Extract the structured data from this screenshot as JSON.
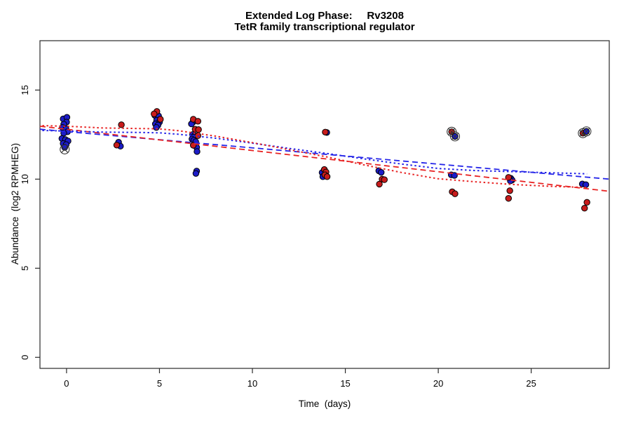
{
  "chart_data": {
    "type": "scatter",
    "title": "Extended Log Phase:     Rv3208",
    "subtitle": "TetR family transcriptional regulator",
    "xlabel": "Time  (days)",
    "ylabel": "Abundance  (log2 RPMHEG)",
    "xlim": [
      -1.43,
      29.2
    ],
    "ylim": [
      -0.62,
      17.77
    ],
    "xticks": [
      0,
      5,
      10,
      15,
      20,
      25
    ],
    "yticks": [
      0,
      5,
      10,
      15
    ],
    "grid": false,
    "legend": "none",
    "colors": {
      "blue_point": "#1c1cc8",
      "red_point": "#c81c1c",
      "blue_line": "#2424e8",
      "red_line": "#e82424",
      "point_stroke": "#000000",
      "axis": "#2a2a2a",
      "flag_stroke": "#333333"
    },
    "series": [
      {
        "name": "blue-replicate-points",
        "type": "points",
        "color_key": "blue_point",
        "points": [
          [
            -0.18,
            13.38
          ],
          [
            0.02,
            13.47
          ],
          [
            0.0,
            13.2
          ],
          [
            -0.15,
            13.08
          ],
          [
            -0.22,
            12.9
          ],
          [
            -0.03,
            12.82
          ],
          [
            0.05,
            12.66
          ],
          [
            -0.15,
            12.58
          ],
          [
            -0.25,
            12.28
          ],
          [
            -0.06,
            12.22
          ],
          [
            0.08,
            12.14
          ],
          [
            -0.18,
            12.0
          ],
          [
            -0.02,
            11.94
          ],
          [
            -0.1,
            11.78
          ],
          [
            2.8,
            12.07
          ],
          [
            2.9,
            11.85
          ],
          [
            4.75,
            13.58
          ],
          [
            4.95,
            13.55
          ],
          [
            4.85,
            13.3
          ],
          [
            5.0,
            13.2
          ],
          [
            4.78,
            13.1
          ],
          [
            4.92,
            13.03
          ],
          [
            4.83,
            12.9
          ],
          [
            6.8,
            13.2
          ],
          [
            6.72,
            13.1
          ],
          [
            6.78,
            12.5
          ],
          [
            6.9,
            12.44
          ],
          [
            6.8,
            12.35
          ],
          [
            6.75,
            12.25
          ],
          [
            6.85,
            12.18
          ],
          [
            6.95,
            12.1
          ],
          [
            7.0,
            11.78
          ],
          [
            7.02,
            11.55
          ],
          [
            7.0,
            10.45
          ],
          [
            6.96,
            10.32
          ],
          [
            14.0,
            12.62
          ],
          [
            13.75,
            10.37
          ],
          [
            13.79,
            10.14
          ],
          [
            16.8,
            10.47
          ],
          [
            16.93,
            10.38
          ],
          [
            20.7,
            10.24
          ],
          [
            20.87,
            10.21
          ],
          [
            23.9,
            10.05
          ],
          [
            23.97,
            9.95
          ],
          [
            23.88,
            9.9
          ],
          [
            27.75,
            9.73
          ],
          [
            27.94,
            9.69
          ]
        ]
      },
      {
        "name": "red-replicate-points",
        "type": "points",
        "color_key": "red_point",
        "points": [
          [
            2.95,
            13.05
          ],
          [
            2.7,
            11.91
          ],
          [
            4.86,
            13.8
          ],
          [
            4.71,
            13.66
          ],
          [
            5.05,
            13.36
          ],
          [
            6.82,
            13.36
          ],
          [
            7.07,
            13.25
          ],
          [
            6.92,
            12.8
          ],
          [
            7.1,
            12.78
          ],
          [
            7.07,
            12.44
          ],
          [
            6.82,
            11.9
          ],
          [
            13.92,
            12.64
          ],
          [
            13.87,
            10.54
          ],
          [
            13.96,
            10.4
          ],
          [
            13.9,
            10.24
          ],
          [
            14.02,
            10.14
          ],
          [
            16.98,
            10.0
          ],
          [
            17.1,
            9.97
          ],
          [
            16.83,
            9.72
          ],
          [
            20.75,
            9.29
          ],
          [
            20.9,
            9.18
          ],
          [
            23.78,
            10.1
          ],
          [
            23.85,
            9.35
          ],
          [
            23.78,
            8.92
          ],
          [
            28.0,
            8.7
          ],
          [
            27.87,
            8.37
          ]
        ]
      },
      {
        "name": "blue-dashed-linear-fit",
        "type": "line",
        "color_key": "blue_line",
        "dash": "8,5",
        "width": 1.8,
        "points": [
          [
            -1.43,
            12.8
          ],
          [
            29.2,
            10.0
          ]
        ]
      },
      {
        "name": "red-dashed-linear-fit",
        "type": "line",
        "color_key": "red_line",
        "dash": "8,5",
        "width": 1.8,
        "points": [
          [
            -1.43,
            12.97
          ],
          [
            29.2,
            9.32
          ]
        ]
      },
      {
        "name": "blue-dotted-lowess-fit",
        "type": "line",
        "color_key": "blue_line",
        "dash": "2.5,3.5",
        "width": 2,
        "points": [
          [
            -1.3,
            12.73
          ],
          [
            0,
            12.7
          ],
          [
            2,
            12.64
          ],
          [
            4,
            12.62
          ],
          [
            5,
            12.6
          ],
          [
            6,
            12.52
          ],
          [
            8,
            12.3
          ],
          [
            10,
            12.02
          ],
          [
            12,
            11.72
          ],
          [
            14,
            11.44
          ],
          [
            16,
            11.14
          ],
          [
            18,
            10.85
          ],
          [
            20,
            10.6
          ],
          [
            22,
            10.48
          ],
          [
            24,
            10.42
          ],
          [
            26,
            10.36
          ],
          [
            28,
            10.3
          ]
        ]
      },
      {
        "name": "red-dotted-lowess-fit",
        "type": "line",
        "color_key": "red_line",
        "dash": "2.5,3.5",
        "width": 2,
        "points": [
          [
            -1.3,
            13.0
          ],
          [
            0,
            12.97
          ],
          [
            2,
            12.87
          ],
          [
            4,
            12.84
          ],
          [
            5,
            12.82
          ],
          [
            6,
            12.72
          ],
          [
            8,
            12.42
          ],
          [
            10,
            12.05
          ],
          [
            12,
            11.65
          ],
          [
            14,
            11.25
          ],
          [
            16,
            10.8
          ],
          [
            18,
            10.38
          ],
          [
            20,
            10.02
          ],
          [
            22,
            9.85
          ],
          [
            24,
            9.7
          ],
          [
            26,
            9.6
          ],
          [
            28,
            9.53
          ]
        ]
      },
      {
        "name": "flagged-outlier-points",
        "type": "flagged",
        "points": [
          {
            "x": -0.1,
            "y": 11.67,
            "fill": "none"
          },
          {
            "x": 20.72,
            "y": 12.66,
            "fill": "red_point"
          },
          {
            "x": 20.9,
            "y": 12.4,
            "fill": "blue_point"
          },
          {
            "x": 27.78,
            "y": 12.58,
            "fill": "red_point"
          },
          {
            "x": 27.97,
            "y": 12.68,
            "fill": "blue_point"
          }
        ]
      }
    ]
  }
}
